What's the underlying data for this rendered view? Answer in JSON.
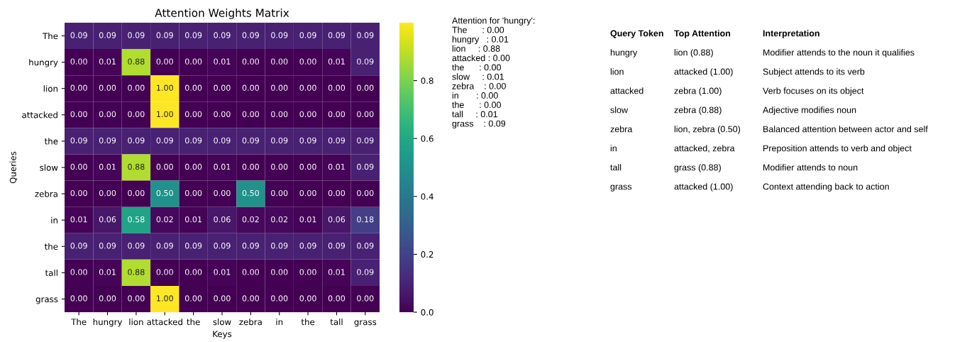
{
  "chart_data": [
    {
      "type": "heatmap",
      "title": "Attention Weights Matrix",
      "xlabel": "Keys",
      "ylabel": "Queries",
      "categories": [
        "The",
        "hungry",
        "lion",
        "attacked",
        "the",
        "slow",
        "zebra",
        "in",
        "the",
        "tall",
        "grass"
      ],
      "y_categories": [
        "The",
        "hungry",
        "lion",
        "attacked",
        "the",
        "slow",
        "zebra",
        "in",
        "the",
        "tall",
        "grass"
      ],
      "cells": [
        [
          0.09,
          0.09,
          0.09,
          0.09,
          0.09,
          0.09,
          0.09,
          0.09,
          0.09,
          0.09,
          0.09
        ],
        [
          0.0,
          0.01,
          0.88,
          0.0,
          0.0,
          0.01,
          0.0,
          0.0,
          0.0,
          0.01,
          0.09
        ],
        [
          0.0,
          0.0,
          0.0,
          1.0,
          0.0,
          0.0,
          0.0,
          0.0,
          0.0,
          0.0,
          0.0
        ],
        [
          0.0,
          0.0,
          0.0,
          1.0,
          0.0,
          0.0,
          0.0,
          0.0,
          0.0,
          0.0,
          0.0
        ],
        [
          0.09,
          0.09,
          0.09,
          0.09,
          0.09,
          0.09,
          0.09,
          0.09,
          0.09,
          0.09,
          0.09
        ],
        [
          0.0,
          0.01,
          0.88,
          0.0,
          0.0,
          0.01,
          0.0,
          0.0,
          0.0,
          0.01,
          0.09
        ],
        [
          0.0,
          0.0,
          0.0,
          0.5,
          0.0,
          0.0,
          0.5,
          0.0,
          0.0,
          0.0,
          0.0
        ],
        [
          0.01,
          0.06,
          0.58,
          0.02,
          0.01,
          0.06,
          0.02,
          0.02,
          0.01,
          0.06,
          0.18
        ],
        [
          0.09,
          0.09,
          0.09,
          0.09,
          0.09,
          0.09,
          0.09,
          0.09,
          0.09,
          0.09,
          0.09
        ],
        [
          0.0,
          0.01,
          0.88,
          0.0,
          0.0,
          0.01,
          0.0,
          0.0,
          0.0,
          0.01,
          0.09
        ],
        [
          0.0,
          0.0,
          0.0,
          1.0,
          0.0,
          0.0,
          0.0,
          0.0,
          0.0,
          0.0,
          0.0
        ]
      ],
      "cell_labels": [
        [
          "0.09",
          "0.09",
          "0.09",
          "0.09",
          "0.09",
          "0.09",
          "0.09",
          "0.09",
          "0.09",
          "0.09",
          "0.09"
        ],
        [
          "0.00",
          "0.01",
          "0.88",
          "0.00",
          "0.00",
          "0.01",
          "0.00",
          "0.00",
          "0.00",
          "0.01",
          "0.09"
        ],
        [
          "0.00",
          "0.00",
          "0.00",
          "1.00",
          "0.00",
          "0.00",
          "0.00",
          "0.00",
          "0.00",
          "0.00",
          "0.00"
        ],
        [
          "0.00",
          "0.00",
          "0.00",
          "1.00",
          "0.00",
          "0.00",
          "0.00",
          "0.00",
          "0.00",
          "0.00",
          "0.00"
        ],
        [
          "0.09",
          "0.09",
          "0.09",
          "0.09",
          "0.09",
          "0.09",
          "0.09",
          "0.09",
          "0.09",
          "0.09",
          "0.09"
        ],
        [
          "0.00",
          "0.01",
          "0.88",
          "0.00",
          "0.00",
          "0.01",
          "0.00",
          "0.00",
          "0.00",
          "0.01",
          "0.09"
        ],
        [
          "0.00",
          "0.00",
          "0.00",
          "0.50",
          "0.00",
          "0.00",
          "0.50",
          "0.00",
          "0.00",
          "0.00",
          "0.00"
        ],
        [
          "0.01",
          "0.06",
          "0.58",
          "0.02",
          "0.01",
          "0.06",
          "0.02",
          "0.02",
          "0.01",
          "0.06",
          "0.18"
        ],
        [
          "0.09",
          "0.09",
          "0.09",
          "0.09",
          "0.09",
          "0.09",
          "0.09",
          "0.09",
          "0.09",
          "0.09",
          "0.09"
        ],
        [
          "0.00",
          "0.01",
          "0.88",
          "0.00",
          "0.00",
          "0.01",
          "0.00",
          "0.00",
          "0.00",
          "0.01",
          "0.09"
        ],
        [
          "0.00",
          "0.00",
          "0.00",
          "1.00",
          "0.00",
          "0.00",
          "0.00",
          "0.00",
          "0.00",
          "0.00",
          "0.00"
        ]
      ],
      "clim": [
        0,
        1.0
      ],
      "cticks": [
        {
          "value": 0,
          "label": "0.0"
        },
        {
          "value": 0.2,
          "label": "0.2"
        },
        {
          "value": 0.4,
          "label": "0.4"
        },
        {
          "value": 0.6,
          "label": "0.6"
        },
        {
          "value": 0.8,
          "label": "0.8"
        }
      ]
    },
    {
      "type": "other",
      "title": "Attention for 'hungry':",
      "annotations": [
        "The      : 0.00",
        "hungry   : 0.01",
        "lion     : 0.88",
        "attacked : 0.00",
        "the      : 0.00",
        "slow     : 0.01",
        "zebra    : 0.00",
        "in       : 0.00",
        "the      : 0.00",
        "tall     : 0.01",
        "grass    : 0.09"
      ]
    },
    {
      "type": "other",
      "categories": [
        "Query Token",
        "Top Attention",
        "Interpretation"
      ],
      "annotations": [
        "hungry",
        "lion (0.88)",
        "Modifier attends to the noun it qualifies",
        "lion",
        "attacked (1.00)",
        "Subject attends to its verb",
        "attacked",
        "zebra (1.00)",
        "Verb focuses on its object",
        "slow",
        "zebra (0.88)",
        "Adjective modifies noun",
        "zebra",
        "lion, zebra (0.50)",
        "Balanced attention between actor and self",
        "in",
        "attacked, zebra",
        "Preposition attends to verb and object",
        "tall",
        "grass (0.88)",
        "Modifier attends to noun",
        "grass",
        "attacked (1.00)",
        "Context attending back to action"
      ]
    }
  ]
}
